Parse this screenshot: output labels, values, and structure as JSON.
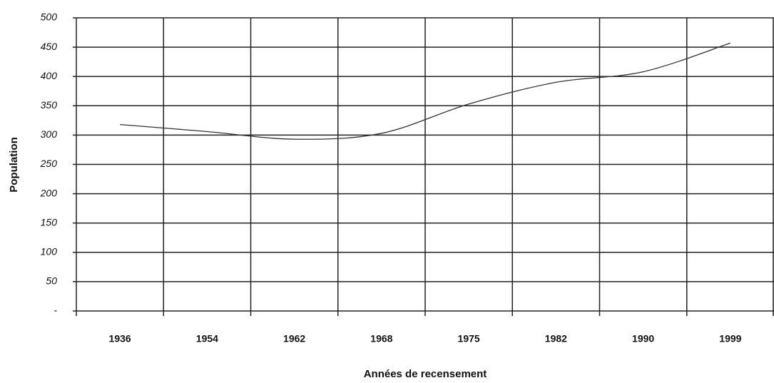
{
  "chart_data": {
    "type": "line",
    "x_label": "Années de recensement",
    "y_label": "Population",
    "categories": [
      "1936",
      "1954",
      "1962",
      "1968",
      "1975",
      "1982",
      "1990",
      "1999"
    ],
    "series": [
      {
        "name": "Population",
        "color": "#333333",
        "values": [
          318,
          306,
          293,
          303,
          353,
          390,
          408,
          457
        ]
      }
    ],
    "ylim": [
      0,
      500
    ],
    "yticks": [
      {
        "value": 0,
        "label": "-"
      },
      50,
      100,
      150,
      200,
      250,
      300,
      350,
      400,
      450,
      500
    ],
    "grid": true
  }
}
